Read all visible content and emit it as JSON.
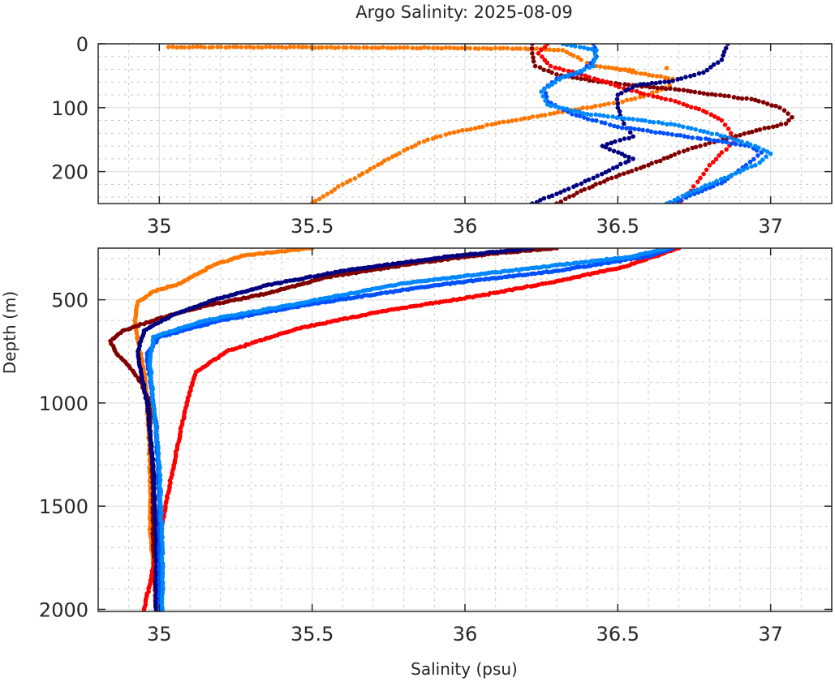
{
  "chart_data": {
    "type": "scatter",
    "title": "Argo Salinity: 2025-08-09",
    "xlabel": "Salinity (psu)",
    "ylabel": "Depth (m)",
    "grid": true,
    "minor_grid": true,
    "legend": "none",
    "panels": [
      {
        "name": "upper",
        "xlim": [
          34.8,
          37.2
        ],
        "ylim": [
          0,
          250
        ],
        "y_reversed": true,
        "xticks": [
          35,
          35.5,
          36,
          36.5,
          37
        ],
        "xtick_labels": [
          "35",
          "35.5",
          "36",
          "36.5",
          "37"
        ],
        "yticks": [
          0,
          100,
          200
        ],
        "ytick_labels": [
          "0",
          "100",
          "200"
        ]
      },
      {
        "name": "lower",
        "xlim": [
          34.8,
          37.2
        ],
        "ylim": [
          250,
          2010
        ],
        "y_reversed": true,
        "xticks": [
          35,
          35.5,
          36,
          36.5,
          37
        ],
        "xtick_labels": [
          "35",
          "35.5",
          "36",
          "36.5",
          "37"
        ],
        "yticks": [
          500,
          1000,
          1500,
          2000
        ],
        "ytick_labels": [
          "500",
          "1000",
          "1500",
          "2000"
        ]
      }
    ],
    "series": [
      {
        "name": "profile-orange",
        "color": "#FF7700",
        "profile": [
          [
            35.03,
            5
          ],
          [
            35.47,
            5
          ],
          [
            35.8,
            6
          ],
          [
            36.25,
            8
          ],
          [
            36.32,
            10
          ],
          [
            36.38,
            25
          ],
          [
            36.4,
            30
          ],
          [
            36.43,
            35
          ],
          [
            36.55,
            42
          ],
          [
            36.66,
            38
          ],
          [
            36.68,
            55
          ],
          [
            36.67,
            65
          ],
          [
            36.6,
            80
          ],
          [
            36.5,
            92
          ],
          [
            36.4,
            100
          ],
          [
            36.25,
            112
          ],
          [
            36.1,
            125
          ],
          [
            35.95,
            140
          ],
          [
            35.85,
            155
          ],
          [
            35.75,
            180
          ],
          [
            35.68,
            200
          ],
          [
            35.6,
            220
          ],
          [
            35.55,
            235
          ],
          [
            35.5,
            250
          ],
          [
            35.4,
            265
          ],
          [
            35.28,
            285
          ],
          [
            35.18,
            330
          ],
          [
            35.07,
            420
          ],
          [
            34.98,
            460
          ],
          [
            34.93,
            510
          ],
          [
            34.92,
            600
          ],
          [
            34.93,
            700
          ],
          [
            34.95,
            850
          ],
          [
            34.96,
            1000
          ],
          [
            34.97,
            1300
          ],
          [
            34.97,
            1600
          ],
          [
            34.98,
            1800
          ]
        ]
      },
      {
        "name": "profile-darkred",
        "color": "#800000",
        "profile": [
          [
            36.22,
            0
          ],
          [
            36.22,
            15
          ],
          [
            36.23,
            35
          ],
          [
            36.3,
            48
          ],
          [
            36.42,
            58
          ],
          [
            36.55,
            65
          ],
          [
            36.7,
            72
          ],
          [
            36.82,
            80
          ],
          [
            36.95,
            88
          ],
          [
            37.03,
            100
          ],
          [
            37.07,
            115
          ],
          [
            37.05,
            125
          ],
          [
            36.98,
            132
          ],
          [
            36.9,
            143
          ],
          [
            36.8,
            155
          ],
          [
            36.7,
            170
          ],
          [
            36.6,
            190
          ],
          [
            36.48,
            210
          ],
          [
            36.38,
            230
          ],
          [
            36.3,
            250
          ],
          [
            36.1,
            275
          ],
          [
            35.85,
            320
          ],
          [
            35.55,
            390
          ],
          [
            35.35,
            470
          ],
          [
            35.15,
            530
          ],
          [
            35.0,
            590
          ],
          [
            34.88,
            650
          ],
          [
            34.84,
            700
          ],
          [
            34.86,
            760
          ],
          [
            34.9,
            820
          ],
          [
            34.94,
            900
          ],
          [
            34.97,
            1000
          ],
          [
            34.97,
            1150
          ],
          [
            34.98,
            1400
          ],
          [
            34.98,
            1700
          ],
          [
            34.99,
            2000
          ]
        ]
      },
      {
        "name": "profile-red",
        "color": "#FF0000",
        "profile": [
          [
            36.27,
            0
          ],
          [
            36.24,
            15
          ],
          [
            36.28,
            35
          ],
          [
            36.38,
            48
          ],
          [
            36.45,
            58
          ],
          [
            36.52,
            70
          ],
          [
            36.6,
            80
          ],
          [
            36.7,
            92
          ],
          [
            36.78,
            105
          ],
          [
            36.84,
            120
          ],
          [
            36.87,
            140
          ],
          [
            36.88,
            155
          ],
          [
            36.84,
            170
          ],
          [
            36.8,
            190
          ],
          [
            36.77,
            210
          ],
          [
            36.74,
            230
          ],
          [
            36.7,
            250
          ],
          [
            36.62,
            290
          ],
          [
            36.52,
            340
          ],
          [
            36.3,
            410
          ],
          [
            36.05,
            480
          ],
          [
            35.75,
            550
          ],
          [
            35.45,
            640
          ],
          [
            35.22,
            750
          ],
          [
            35.12,
            850
          ],
          [
            35.09,
            1000
          ],
          [
            35.06,
            1200
          ],
          [
            35.02,
            1500
          ],
          [
            34.98,
            1800
          ],
          [
            34.95,
            2000
          ]
        ]
      },
      {
        "name": "profile-navy",
        "color": "#000080",
        "profile": [
          [
            36.86,
            0
          ],
          [
            36.84,
            25
          ],
          [
            36.78,
            45
          ],
          [
            36.68,
            58
          ],
          [
            36.56,
            65
          ],
          [
            36.5,
            80
          ],
          [
            36.5,
            100
          ],
          [
            36.52,
            125
          ],
          [
            36.55,
            145
          ],
          [
            36.45,
            160
          ],
          [
            36.55,
            180
          ],
          [
            36.42,
            210
          ],
          [
            36.3,
            235
          ],
          [
            36.22,
            250
          ],
          [
            35.95,
            290
          ],
          [
            35.6,
            360
          ],
          [
            35.35,
            430
          ],
          [
            35.18,
            500
          ],
          [
            35.05,
            570
          ],
          [
            34.95,
            650
          ],
          [
            34.93,
            750
          ],
          [
            34.94,
            850
          ],
          [
            34.96,
            1000
          ],
          [
            34.98,
            1300
          ],
          [
            34.99,
            1700
          ],
          [
            34.99,
            2000
          ]
        ]
      },
      {
        "name": "profile-blue",
        "color": "#0050FF",
        "profile": [
          [
            36.42,
            0
          ],
          [
            36.43,
            20
          ],
          [
            36.38,
            45
          ],
          [
            36.3,
            55
          ],
          [
            36.26,
            70
          ],
          [
            36.27,
            90
          ],
          [
            36.35,
            110
          ],
          [
            36.5,
            130
          ],
          [
            36.65,
            140
          ],
          [
            36.8,
            150
          ],
          [
            36.93,
            160
          ],
          [
            36.97,
            170
          ],
          [
            36.92,
            190
          ],
          [
            36.85,
            215
          ],
          [
            36.75,
            235
          ],
          [
            36.68,
            250
          ],
          [
            36.6,
            290
          ],
          [
            36.3,
            360
          ],
          [
            35.9,
            430
          ],
          [
            35.5,
            520
          ],
          [
            35.2,
            600
          ],
          [
            35.0,
            680
          ],
          [
            34.96,
            760
          ],
          [
            34.97,
            900
          ],
          [
            34.99,
            1100
          ],
          [
            35.0,
            1500
          ],
          [
            35.0,
            2000
          ]
        ]
      },
      {
        "name": "profile-lightblue",
        "color": "#0088FF",
        "profile": [
          [
            36.32,
            0
          ],
          [
            36.43,
            10
          ],
          [
            36.42,
            35
          ],
          [
            36.32,
            52
          ],
          [
            36.25,
            75
          ],
          [
            36.27,
            95
          ],
          [
            36.4,
            110
          ],
          [
            36.55,
            118
          ],
          [
            36.7,
            128
          ],
          [
            36.85,
            145
          ],
          [
            36.95,
            160
          ],
          [
            37.0,
            172
          ],
          [
            36.95,
            190
          ],
          [
            36.85,
            210
          ],
          [
            36.75,
            230
          ],
          [
            36.66,
            250
          ],
          [
            36.55,
            290
          ],
          [
            36.2,
            350
          ],
          [
            35.8,
            420
          ],
          [
            35.45,
            520
          ],
          [
            35.15,
            600
          ],
          [
            34.98,
            680
          ],
          [
            34.97,
            800
          ],
          [
            34.98,
            1000
          ],
          [
            35.0,
            1300
          ],
          [
            35.01,
            1700
          ],
          [
            35.01,
            2000
          ]
        ]
      }
    ]
  }
}
